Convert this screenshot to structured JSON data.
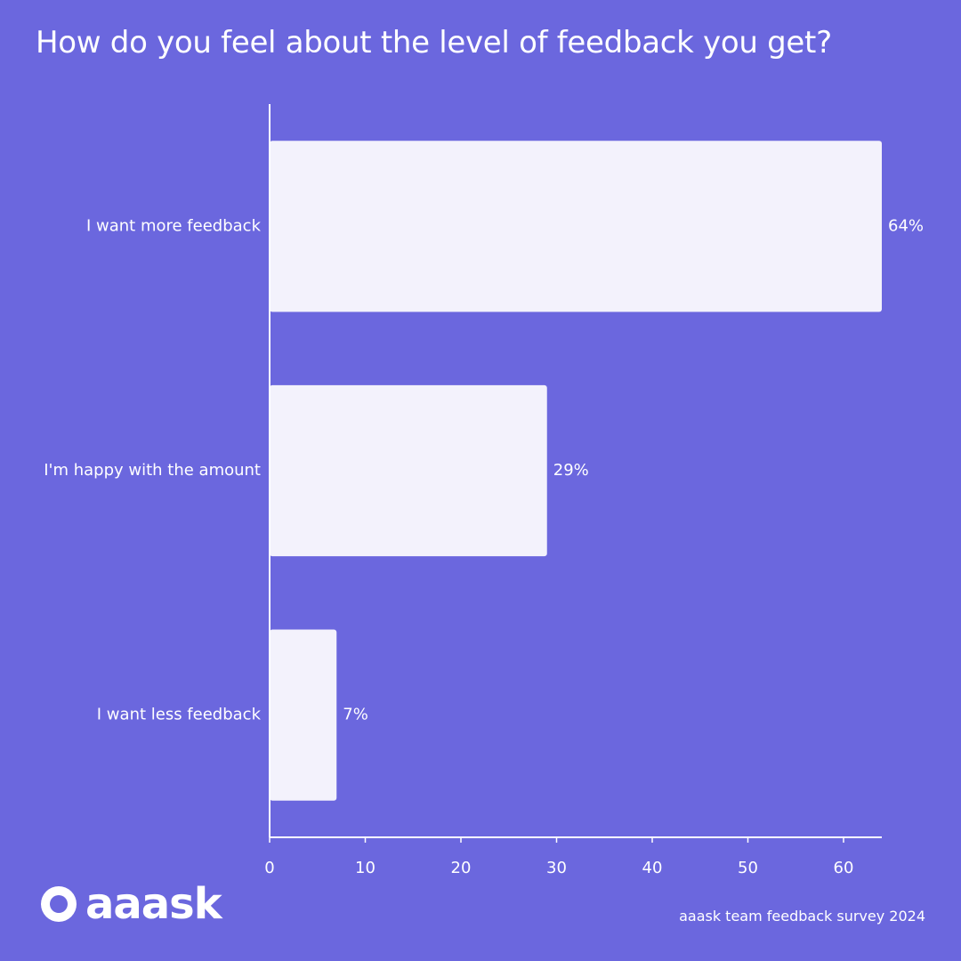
{
  "title": "How do you feel about the level of feedback you get?",
  "footer": "aaask team feedback survey 2024",
  "logo": {
    "text": "aaask",
    "icon": "aaask-logo-icon"
  },
  "colors": {
    "background": "#6b67de",
    "bar": "#f3f2fc",
    "text": "#ffffff",
    "axis": "#ffffff"
  },
  "chart_data": {
    "type": "bar",
    "orientation": "horizontal",
    "categories": [
      "I want more feedback",
      "I'm happy with the amount",
      "I want less feedback"
    ],
    "values": [
      64,
      29,
      7
    ],
    "data_labels": [
      "64%",
      "29%",
      "7%"
    ],
    "xticks": [
      0,
      10,
      20,
      30,
      40,
      50,
      60
    ],
    "xlim": [
      0,
      64
    ],
    "grid": false
  }
}
